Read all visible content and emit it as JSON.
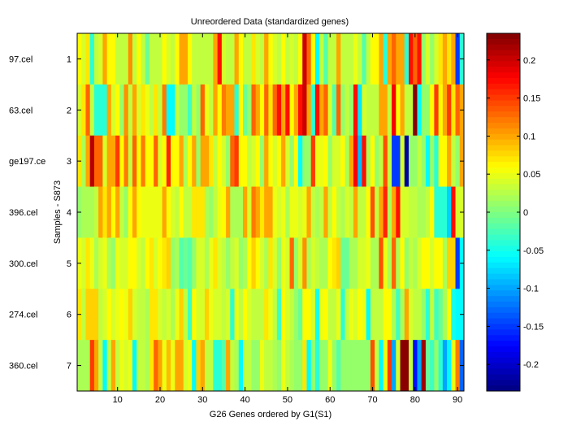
{
  "chart_data": {
    "type": "heatmap",
    "title": "Unreordered Data (standardized genes)",
    "xlabel": "G26 Genes ordered by G1(S1)",
    "ylabel": "Samples - S873",
    "x_range": [
      1,
      91
    ],
    "x_ticks": [
      10,
      20,
      30,
      40,
      50,
      60,
      70,
      80,
      90
    ],
    "y_ticks": [
      1,
      2,
      3,
      4,
      5,
      6,
      7
    ],
    "row_labels": [
      "97.cel",
      "63.cel",
      "ge197.ce",
      "396.cel",
      "300.cel",
      "274.cel",
      "360.cel"
    ],
    "colormap": "jet",
    "color_range": [
      -0.235,
      0.235
    ],
    "colorbar_ticks": [
      0.2,
      0.15,
      0.1,
      0.05,
      0,
      -0.05,
      -0.1,
      -0.15,
      -0.2
    ],
    "colorbar_tick_labels": [
      "0.2",
      "0.15",
      "0.1",
      "0.05",
      "0",
      "-0.05",
      "-0.1",
      "-0.15",
      "-0.2"
    ],
    "values": [
      [
        0.06,
        0.04,
        0.07,
        -0.04,
        0.03,
        0.04,
        0.1,
        0.06,
        0.06,
        0.03,
        0.03,
        0.03,
        0.11,
        0.03,
        0.06,
        0.03,
        -0.01,
        0.03,
        0.03,
        0.03,
        0.06,
        0.04,
        0.03,
        0.06,
        0.1,
        0.1,
        0.06,
        0.03,
        0.03,
        0.03,
        0.03,
        0.03,
        0.1,
        0.17,
        0.04,
        0.03,
        0.03,
        0.1,
        0.06,
        0.03,
        0.03,
        0.07,
        0.04,
        0.03,
        0.1,
        0.06,
        0.04,
        0.03,
        0.06,
        0.03,
        0.04,
        0.03,
        0.06,
        0.2,
        0.13,
        0.06,
        -0.06,
        0.03,
        -0.02,
        0.03,
        0.03,
        0.1,
        0.03,
        0.03,
        0.03,
        0.05,
        0.03,
        -0.02,
        0.03,
        0.06,
        0.06,
        0.1,
        -0.04,
        0.1,
        0.13,
        0.1,
        0.1,
        -0.04,
        0.17,
        0.13,
        0.17,
        0.01,
        0.04,
        0.01,
        0.04,
        0.07,
        0.1,
        0.07,
        0.1,
        -0.15,
        -0.04
      ],
      [
        0.04,
        0.07,
        0.13,
        0.03,
        -0.04,
        -0.04,
        -0.04,
        0.1,
        0.04,
        0.06,
        0.01,
        0.11,
        0.03,
        0.1,
        0.04,
        0.07,
        0.05,
        0.03,
        0.07,
        0.03,
        0.12,
        -0.06,
        -0.06,
        0.03,
        0.01,
        0.01,
        -0.03,
        0.03,
        0.01,
        0.13,
        0.05,
        0.03,
        0.1,
        0.06,
        0.12,
        0.1,
        0.1,
        -0.04,
        0.06,
        -0.01,
        0.01,
        0.13,
        0.1,
        0.06,
        0.13,
        0.07,
        0.13,
        0.17,
        0.1,
        0.17,
        0.06,
        0.1,
        0.17,
        0.2,
        0.1,
        -0.04,
        0.17,
        0.1,
        0.13,
        0.04,
        -0.02,
        0.13,
        0.01,
        0.03,
        0.01,
        0.17,
        -0.07,
        0.04,
        0.03,
        0.03,
        0.03,
        0.1,
        0.1,
        0.03,
        0.18,
        0.06,
        0.1,
        0.03,
        0.03,
        0.23,
        -0.06,
        0.01,
        0.01,
        0.06,
        0.15,
        0.06,
        0.1,
        0.15,
        0.07,
        0.13,
        0.1
      ],
      [
        0.07,
        0.02,
        0.1,
        0.21,
        0.13,
        0.13,
        0.04,
        0.1,
        0.1,
        0.15,
        0.06,
        0.12,
        0.03,
        0.13,
        0.06,
        0.12,
        0.06,
        0.06,
        0.13,
        0.04,
        0.06,
        0.16,
        0.06,
        0.06,
        0.1,
        0.02,
        0.06,
        0.1,
        0.01,
        0.1,
        0.1,
        0.07,
        0.03,
        0.06,
        0.04,
        0.01,
        0.13,
        0.15,
        0.06,
        0.06,
        0.03,
        0.04,
        0.06,
        0.01,
        0.1,
        0.06,
        0.04,
        0.06,
        0.1,
        0.04,
        0.01,
        0.06,
        -0.06,
        0.01,
        0.01,
        0.15,
        0.05,
        0.05,
        0.06,
        0.01,
        0.04,
        0.04,
        0.06,
        0.02,
        0.1,
        0.18,
        -0.09,
        0.17,
        0.02,
        0.06,
        0.01,
        0.03,
        0.14,
        0.03,
        -0.15,
        -0.15,
        0.04,
        -0.22,
        0.01,
        0.01,
        0.03,
        0.01,
        -0.06,
        0.01,
        -0.04,
        0.06,
        0.06,
        0.1,
        0.03,
        0.01,
        0.1
      ],
      [
        0.01,
        0.02,
        0.02,
        0.02,
        0.03,
        0.1,
        0.07,
        0.1,
        0.06,
        0.1,
        0.03,
        0.01,
        0.06,
        0.1,
        0.06,
        0.05,
        0.05,
        0.05,
        0.05,
        0.05,
        0.1,
        0.06,
        0.04,
        0.03,
        0.06,
        0.03,
        0.03,
        0.07,
        0.07,
        0.07,
        0.02,
        0.01,
        0.03,
        0.05,
        0.06,
        0.1,
        0.02,
        0.02,
        0.02,
        0.1,
        0.04,
        0.12,
        0.1,
        0.07,
        0.1,
        0.1,
        0.05,
        0.04,
        0.05,
        0.02,
        0.05,
        0.05,
        0.04,
        0.05,
        0.1,
        0.03,
        0.02,
        0.03,
        0.1,
        0.03,
        0.06,
        0.03,
        0.02,
        0.04,
        0.03,
        0.1,
        0.03,
        0.03,
        0.06,
        0.14,
        0.03,
        0.1,
        0.16,
        0.02,
        0.1,
        0.17,
        0.04,
        0.04,
        0.03,
        0.03,
        0.02,
        0.02,
        0.03,
        0.06,
        -0.04,
        -0.04,
        -0.04,
        -0.08,
        0.17,
        0.04,
        0.04
      ],
      [
        0.05,
        0.04,
        0.07,
        0.05,
        0.02,
        0.04,
        0.05,
        0.02,
        0.01,
        0.05,
        0.04,
        0.04,
        0.06,
        0.06,
        0.04,
        0.03,
        0.06,
        0.07,
        0.04,
        0.06,
        0.07,
        0.08,
        0.01,
        0.02,
        -0.02,
        -0.01,
        -0.02,
        0.01,
        0.04,
        0.04,
        0.02,
        0.05,
        0.07,
        0.04,
        0.03,
        0.01,
        0.03,
        0.04,
        0.01,
        0.02,
        0.06,
        0.08,
        0.06,
        0.04,
        0.02,
        0.07,
        0.04,
        0.01,
        0.05,
        0.04,
        0.13,
        0.01,
        0.04,
        0.11,
        0.02,
        0.04,
        0.03,
        0.02,
        0.02,
        0.06,
        0.07,
        0.08,
        -0.01,
        -0.01,
        0.02,
        0.02,
        0.04,
        0.04,
        0.05,
        0.02,
        0.02,
        0.14,
        0.05,
        0.02,
        0.13,
        0.02,
        0.06,
        0.01,
        0.03,
        0.02,
        0.04,
        0.06,
        0.06,
        0.04,
        0.06,
        0.06,
        0.02,
        0.08,
        0.08,
        -0.15,
        -0.06
      ],
      [
        0.07,
        0.03,
        0.08,
        0.08,
        0.08,
        0.03,
        0.04,
        0.06,
        0.04,
        0.05,
        0.06,
        0.05,
        0.08,
        0.04,
        0.03,
        0.03,
        0.02,
        0.07,
        0.07,
        0.04,
        0.03,
        0.04,
        0.02,
        0.05,
        0.08,
        0.03,
        -0.03,
        0.06,
        0.04,
        0.04,
        0.08,
        0.05,
        0.04,
        0.04,
        0.03,
        0.04,
        -0.04,
        0.05,
        0.03,
        0.06,
        0.04,
        0.03,
        0.03,
        0.03,
        0.07,
        0.05,
        0.03,
        -0.03,
        0.06,
        0.04,
        0.03,
        0.01,
        -0.01,
        0.06,
        0.06,
        0.04,
        -0.05,
        0.05,
        0.06,
        0.03,
        0.03,
        0.05,
        -0.04,
        0.03,
        0.05,
        0.04,
        0.06,
        0.05,
        -0.06,
        0.03,
        0.03,
        0.03,
        0.06,
        0.06,
        0.02,
        -0.03,
        0.02,
        0.1,
        0.04,
        0.03,
        0.03,
        0.01,
        -0.04,
        0.03,
        -0.03,
        -0.01,
        0.02,
        0.06,
        -0.05,
        -0.06,
        -0.06
      ],
      [
        0.02,
        0.02,
        0.02,
        0.15,
        0.1,
        0.03,
        -0.06,
        0.03,
        0.1,
        0.03,
        0.05,
        0.04,
        0.05,
        -0.06,
        0.03,
        0.03,
        0.02,
        0.07,
        0.13,
        0.1,
        0.05,
        0.09,
        0.05,
        0.1,
        0.1,
        0.04,
        0.05,
        -0.06,
        0.08,
        0.1,
        0.03,
        0.03,
        -0.04,
        -0.04,
        -0.02,
        0.1,
        0.03,
        0.02,
        -0.06,
        0.03,
        0.03,
        0.01,
        0.01,
        0.05,
        0.03,
        0.03,
        0.02,
        0.01,
        0.05,
        0.03,
        0.02,
        0.01,
        0.01,
        0.07,
        -0.06,
        0.01,
        -0.04,
        0.01,
        0.01,
        0.05,
        0.01,
        -0.02,
        0.01,
        0.01,
        0.01,
        0.01,
        0.01,
        0.01,
        0.01,
        0.14,
        0.03,
        -0.06,
        0.05,
        0.15,
        -0.1,
        0.04,
        0.23,
        0.23,
        0.03,
        -0.17,
        -0.1,
        0.22,
        -0.01,
        -0.03,
        0.01,
        -0.04,
        -0.1,
        -0.06,
        0.05,
        0.12,
        -0.13
      ]
    ]
  }
}
